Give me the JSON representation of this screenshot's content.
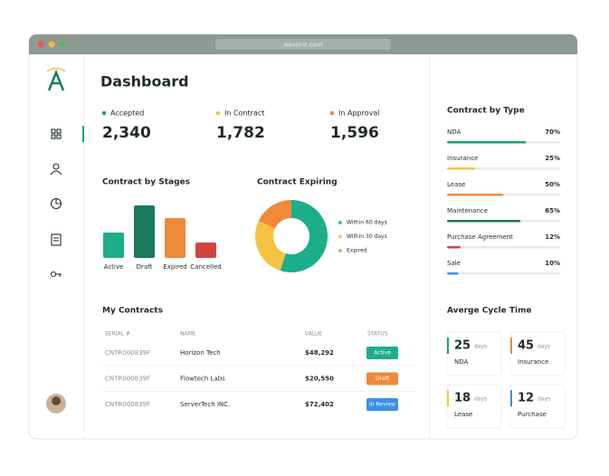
{
  "browser": {
    "url": "aavenir.com"
  },
  "dashboard": {
    "title": "Dashboard"
  },
  "stats": [
    {
      "label": "Accepted",
      "value": "2,340",
      "color": "#1aa37a"
    },
    {
      "label": "In Contract",
      "value": "1,782",
      "color": "#f5c242"
    },
    {
      "label": "In Approval",
      "value": "1,596",
      "color": "#ef8a3a"
    }
  ],
  "stages": {
    "type": "bar",
    "title": "Contract by Stages",
    "categories": [
      "Active",
      "Draft",
      "Expired",
      "Cancelled"
    ],
    "values": [
      28,
      58,
      44,
      17
    ],
    "colors": [
      "#1aae8a",
      "#177a5c",
      "#ef8a3a",
      "#d0453f"
    ]
  },
  "expiring": {
    "type": "pie",
    "title": "Contract Expiring",
    "series": [
      {
        "name": "Within 60 days",
        "value": 55,
        "color": "#1aae8a"
      },
      {
        "name": "Within 30 days",
        "value": 27,
        "color": "#f5c242"
      },
      {
        "name": "Expired",
        "value": 18,
        "color": "#ef8a3a"
      }
    ]
  },
  "contracts": {
    "title": "My Contracts",
    "columns": [
      "SERIAL #",
      "NAME",
      "VALUE",
      "STATUS"
    ],
    "rows": [
      [
        "CNTR000839F",
        "Horizon Tech",
        "$48,292",
        "Active"
      ],
      [
        "CNTR000839F",
        "Flowtech Labs",
        "$20,550",
        "Draft"
      ],
      [
        "CNTR000839F",
        "ServerTech INC.",
        "$72,402",
        "In Review"
      ]
    ],
    "status_colors": [
      "#1aae8a",
      "#ef8a3a",
      "#3b8fe6"
    ]
  },
  "by_type": {
    "title": "Contract  by Type",
    "items": [
      {
        "name": "NDA",
        "value": 70,
        "value_label": "70%",
        "color": "#1aa37a"
      },
      {
        "name": "Insurance",
        "value": 25,
        "value_label": "25%",
        "color": "#f5c242"
      },
      {
        "name": "Lease",
        "value": 50,
        "value_label": "50%",
        "color": "#ef8a3a"
      },
      {
        "name": "Maintenance",
        "value": 65,
        "value_label": "65%",
        "color": "#177a5c"
      },
      {
        "name": "Purchase Agreement",
        "value": 12,
        "value_label": "12%",
        "color": "#d0453f"
      },
      {
        "name": "Sale",
        "value": 10,
        "value_label": "10%",
        "color": "#3b8fe6"
      }
    ]
  },
  "cycle": {
    "title": "Averge Cycle Time",
    "unit": "days",
    "items": [
      {
        "value": 25,
        "label": "NDA",
        "color": "#1aa37a"
      },
      {
        "value": 45,
        "label": "Insurance",
        "color": "#ef8a3a"
      },
      {
        "value": 18,
        "label": "Lease",
        "color": "#f5c242"
      },
      {
        "value": 12,
        "label": "Purchase",
        "color": "#3b8fe6"
      }
    ]
  }
}
